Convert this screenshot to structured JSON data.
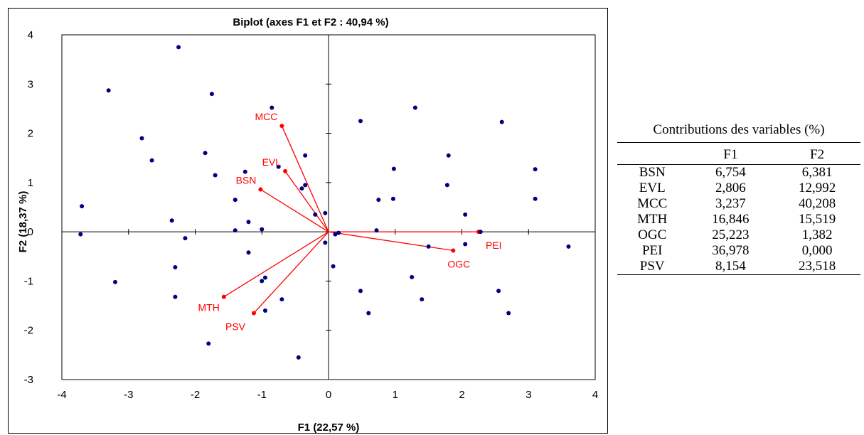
{
  "chart_data": {
    "type": "scatter",
    "title": "Biplot (axes F1 et F2 : 40,94 %)",
    "xlabel": "F1 (22,57 %)",
    "ylabel": "F2 (18,37 %)",
    "xlim": [
      -4,
      4
    ],
    "ylim": [
      -3,
      4
    ],
    "xticks": [
      -4,
      -3,
      -2,
      -1,
      0,
      1,
      2,
      3,
      4
    ],
    "yticks": [
      -3,
      -2,
      -1,
      0,
      1,
      2,
      3,
      4
    ],
    "grid": false,
    "point_color": "#000080",
    "vector_color": "#ff0000",
    "observations": [
      [
        -3.3,
        2.87
      ],
      [
        -2.25,
        3.75
      ],
      [
        -1.75,
        2.8
      ],
      [
        -0.85,
        2.52
      ],
      [
        -2.8,
        1.9
      ],
      [
        -2.65,
        1.45
      ],
      [
        -1.85,
        1.6
      ],
      [
        -1.7,
        1.15
      ],
      [
        -1.25,
        1.22
      ],
      [
        -0.35,
        1.55
      ],
      [
        -0.75,
        1.32
      ],
      [
        -0.4,
        0.88
      ],
      [
        -0.35,
        0.95
      ],
      [
        -1.4,
        0.65
      ],
      [
        -1.2,
        0.2
      ],
      [
        -2.35,
        0.23
      ],
      [
        -3.7,
        0.52
      ],
      [
        -3.72,
        -0.05
      ],
      [
        -2.15,
        -0.13
      ],
      [
        -1.4,
        0.03
      ],
      [
        -1.0,
        0.05
      ],
      [
        -0.2,
        0.35
      ],
      [
        -0.05,
        0.38
      ],
      [
        -1.2,
        -0.42
      ],
      [
        -2.3,
        -0.72
      ],
      [
        -0.05,
        -0.22
      ],
      [
        -3.2,
        -1.02
      ],
      [
        -2.3,
        -1.32
      ],
      [
        -0.95,
        -0.93
      ],
      [
        -1.0,
        -1.0
      ],
      [
        -0.7,
        -1.37
      ],
      [
        -0.95,
        -1.6
      ],
      [
        -1.8,
        -2.27
      ],
      [
        -0.45,
        -2.55
      ],
      [
        0.1,
        -0.05
      ],
      [
        0.15,
        -0.02
      ],
      [
        0.07,
        -0.7
      ],
      [
        0.48,
        -1.2
      ],
      [
        0.6,
        -1.65
      ],
      [
        0.48,
        2.25
      ],
      [
        1.3,
        2.52
      ],
      [
        0.98,
        1.28
      ],
      [
        0.75,
        0.65
      ],
      [
        0.97,
        0.67
      ],
      [
        0.72,
        0.03
      ],
      [
        1.8,
        1.55
      ],
      [
        1.78,
        0.95
      ],
      [
        1.5,
        -0.3
      ],
      [
        1.25,
        -0.92
      ],
      [
        1.4,
        -1.37
      ],
      [
        2.05,
        0.35
      ],
      [
        2.05,
        -0.25
      ],
      [
        2.28,
        0.0
      ],
      [
        2.6,
        2.23
      ],
      [
        3.1,
        1.27
      ],
      [
        3.1,
        0.67
      ],
      [
        2.55,
        -1.2
      ],
      [
        2.7,
        -1.65
      ],
      [
        3.6,
        -0.3
      ]
    ],
    "variables": [
      {
        "name": "MCC",
        "x": -0.7,
        "y": 2.15
      },
      {
        "name": "EVL",
        "x": -0.65,
        "y": 1.23
      },
      {
        "name": "BSN",
        "x": -1.02,
        "y": 0.86
      },
      {
        "name": "PEI",
        "x": 2.25,
        "y": 0.0
      },
      {
        "name": "OGC",
        "x": 1.87,
        "y": -0.38
      },
      {
        "name": "MTH",
        "x": -1.57,
        "y": -1.32
      },
      {
        "name": "PSV",
        "x": -1.12,
        "y": -1.65
      }
    ]
  },
  "table": {
    "caption": "Contributions des variables (%)",
    "columns": [
      "",
      "F1",
      "F2"
    ],
    "rows": [
      {
        "name": "BSN",
        "f1": "6,754",
        "f2": "6,381"
      },
      {
        "name": "EVL",
        "f1": "2,806",
        "f2": "12,992"
      },
      {
        "name": "MCC",
        "f1": "3,237",
        "f2": "40,208"
      },
      {
        "name": "MTH",
        "f1": "16,846",
        "f2": "15,519"
      },
      {
        "name": "OGC",
        "f1": "25,223",
        "f2": "1,382"
      },
      {
        "name": "PEI",
        "f1": "36,978",
        "f2": "0,000"
      },
      {
        "name": "PSV",
        "f1": "8,154",
        "f2": "23,518"
      }
    ]
  }
}
